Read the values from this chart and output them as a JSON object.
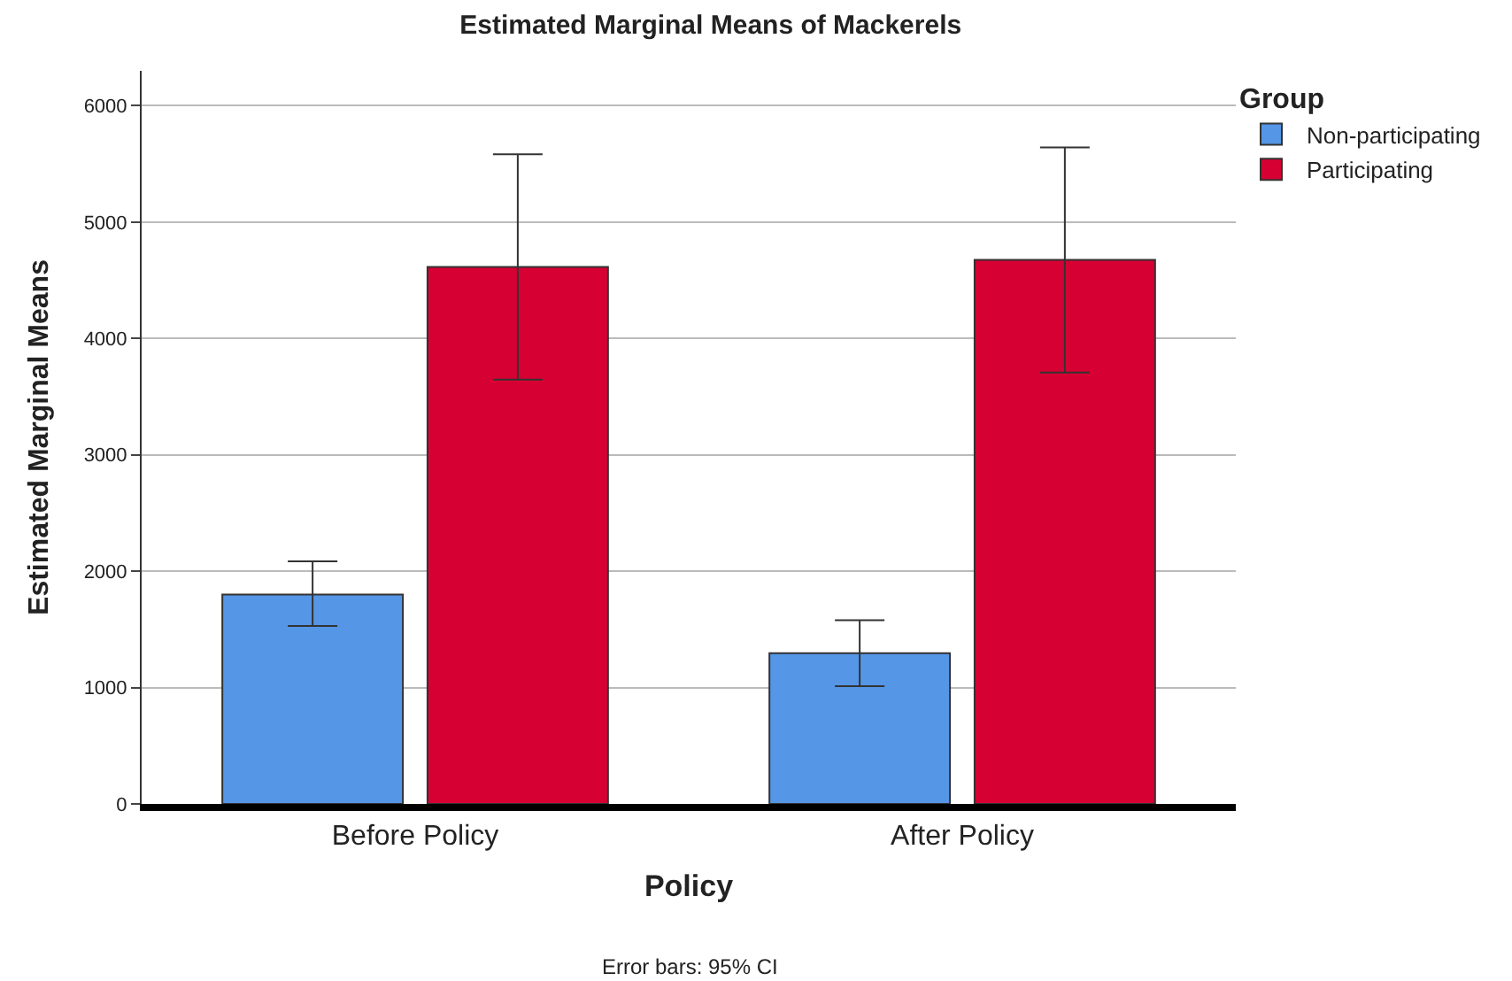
{
  "chart_data": {
    "type": "bar",
    "title": "Estimated Marginal Means of Mackerels",
    "xlabel": "Policy",
    "ylabel": "Estimated Marginal Means",
    "legend_title": "Group",
    "categories": [
      "Before Policy",
      "After Policy"
    ],
    "series": [
      {
        "name": "Non-participating",
        "color": "#5596e6",
        "values": [
          1800,
          1295
        ],
        "errors": [
          [
            1530,
            2085
          ],
          [
            1012,
            1578
          ]
        ]
      },
      {
        "name": "Participating",
        "color": "#d70033",
        "values": [
          4615,
          4675
        ],
        "errors": [
          [
            3647,
            5583
          ],
          [
            3707,
            5642
          ]
        ]
      }
    ],
    "ylim": [
      0,
      6300
    ],
    "yticks": [
      0,
      1000,
      2000,
      3000,
      4000,
      5000,
      6000
    ],
    "grid": "y",
    "legend": "top right",
    "annotations": [
      "Error bars: 95% CI"
    ]
  }
}
